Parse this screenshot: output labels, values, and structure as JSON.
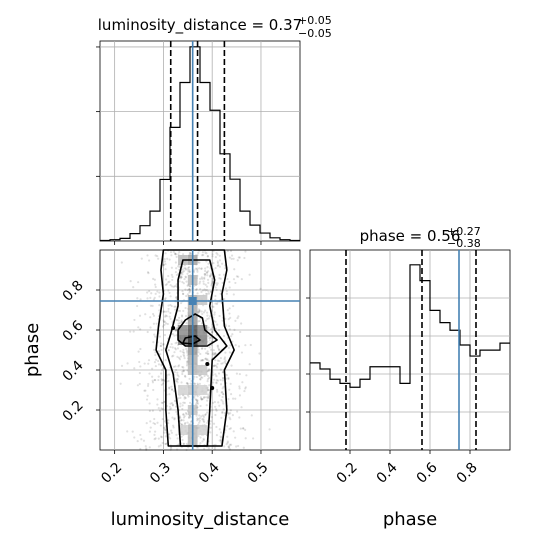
{
  "chart_data": {
    "type": "corner",
    "parameters": [
      "luminosity_distance",
      "phase"
    ],
    "truth": {
      "luminosity_distance": 0.36,
      "phase": 0.745
    },
    "grid": true,
    "luminosity_distance": {
      "title_main": "luminosity_distance = 0.37",
      "title_sup": "+0.05",
      "title_sub": "−0.05",
      "median": 0.37,
      "quantiles": [
        0.315,
        0.37,
        0.425
      ],
      "range": [
        0.17,
        0.58
      ],
      "ticks": [
        0.2,
        0.3,
        0.4,
        0.5
      ],
      "tick_labels": [
        "0.2",
        "0.3",
        "0.4",
        "0.5"
      ],
      "hist_bin_edges": [
        0.17,
        0.1905,
        0.211,
        0.2315,
        0.252,
        0.2725,
        0.293,
        0.3135,
        0.334,
        0.3545,
        0.375,
        0.3955,
        0.416,
        0.4365,
        0.457,
        0.4775,
        0.498,
        0.5185,
        0.539,
        0.5595,
        0.58
      ],
      "hist_counts": [
        2,
        5,
        10,
        28,
        58,
        113,
        233,
        430,
        600,
        735,
        600,
        495,
        330,
        234,
        113,
        60,
        30,
        12,
        5,
        2
      ]
    },
    "phase": {
      "title_main": "phase = 0.56",
      "title_sup": "+0.27",
      "title_sub": "−0.38",
      "median": 0.56,
      "quantiles": [
        0.18,
        0.56,
        0.83
      ],
      "range": [
        0.0,
        1.0
      ],
      "ticks": [
        0.2,
        0.4,
        0.6,
        0.8
      ],
      "tick_labels": [
        "0.2",
        "0.4",
        "0.6",
        "0.8"
      ],
      "hist_bin_edges": [
        0.0,
        0.05,
        0.1,
        0.15,
        0.2,
        0.25,
        0.3,
        0.35,
        0.4,
        0.45,
        0.5,
        0.55,
        0.6,
        0.65,
        0.7,
        0.75,
        0.8,
        0.85,
        0.9,
        0.95,
        1.0
      ],
      "hist_counts": [
        425,
        395,
        345,
        325,
        306,
        345,
        406,
        406,
        406,
        325,
        903,
        826,
        681,
        621,
        584,
        512,
        458,
        487,
        487,
        521
      ]
    },
    "joint": {
      "xlabel": "luminosity_distance",
      "ylabel": "phase",
      "xlim": [
        0.17,
        0.58
      ],
      "ylim": [
        0.0,
        1.0
      ],
      "peak": {
        "x": 0.36,
        "y": 0.55
      },
      "contours": [
        [
          [
            0.31,
            0.02
          ],
          [
            0.305,
            0.2
          ],
          [
            0.305,
            0.4
          ],
          [
            0.285,
            0.5
          ],
          [
            0.29,
            0.62
          ],
          [
            0.3,
            0.78
          ],
          [
            0.295,
            0.9
          ],
          [
            0.3,
            1.0
          ],
          [
            0.425,
            1.0
          ],
          [
            0.43,
            0.9
          ],
          [
            0.42,
            0.78
          ],
          [
            0.425,
            0.62
          ],
          [
            0.445,
            0.5
          ],
          [
            0.425,
            0.4
          ],
          [
            0.43,
            0.2
          ],
          [
            0.42,
            0.02
          ]
        ],
        [
          [
            0.335,
            0.02
          ],
          [
            0.33,
            0.2
          ],
          [
            0.32,
            0.38
          ],
          [
            0.305,
            0.5
          ],
          [
            0.315,
            0.58
          ],
          [
            0.33,
            0.72
          ],
          [
            0.33,
            0.85
          ],
          [
            0.34,
            0.95
          ],
          [
            0.395,
            0.95
          ],
          [
            0.405,
            0.85
          ],
          [
            0.395,
            0.72
          ],
          [
            0.405,
            0.6
          ],
          [
            0.43,
            0.52
          ],
          [
            0.4,
            0.45
          ],
          [
            0.395,
            0.2
          ],
          [
            0.39,
            0.02
          ]
        ],
        [
          [
            0.33,
            0.55
          ],
          [
            0.33,
            0.6
          ],
          [
            0.345,
            0.65
          ],
          [
            0.365,
            0.68
          ],
          [
            0.38,
            0.66
          ],
          [
            0.385,
            0.6
          ],
          [
            0.41,
            0.55
          ],
          [
            0.39,
            0.52
          ],
          [
            0.345,
            0.52
          ]
        ],
        [
          [
            0.34,
            0.535
          ],
          [
            0.345,
            0.56
          ],
          [
            0.365,
            0.57
          ],
          [
            0.375,
            0.55
          ],
          [
            0.36,
            0.53
          ]
        ]
      ],
      "shade_cells": [
        {
          "x": 0.36,
          "y": 0.55,
          "level": 0.95
        },
        {
          "x": 0.36,
          "y": 0.6,
          "level": 0.75
        },
        {
          "x": 0.34,
          "y": 0.55,
          "level": 0.6
        },
        {
          "x": 0.38,
          "y": 0.55,
          "level": 0.55
        },
        {
          "x": 0.34,
          "y": 0.6,
          "level": 0.5
        },
        {
          "x": 0.38,
          "y": 0.6,
          "level": 0.5
        },
        {
          "x": 0.36,
          "y": 0.65,
          "level": 0.45
        },
        {
          "x": 0.36,
          "y": 0.5,
          "level": 0.45
        },
        {
          "x": 0.36,
          "y": 0.45,
          "level": 0.35
        },
        {
          "x": 0.36,
          "y": 0.4,
          "level": 0.3
        },
        {
          "x": 0.38,
          "y": 0.4,
          "level": 0.25
        },
        {
          "x": 0.36,
          "y": 0.7,
          "level": 0.35
        },
        {
          "x": 0.36,
          "y": 0.75,
          "level": 0.35
        },
        {
          "x": 0.38,
          "y": 0.75,
          "level": 0.25
        },
        {
          "x": 0.36,
          "y": 0.85,
          "level": 0.3
        },
        {
          "x": 0.36,
          "y": 0.95,
          "level": 0.4
        },
        {
          "x": 0.34,
          "y": 0.95,
          "level": 0.3
        },
        {
          "x": 0.36,
          "y": 0.1,
          "level": 0.3
        },
        {
          "x": 0.36,
          "y": 0.05,
          "level": 0.3
        },
        {
          "x": 0.34,
          "y": 0.1,
          "level": 0.2
        },
        {
          "x": 0.38,
          "y": 0.1,
          "level": 0.2
        },
        {
          "x": 0.36,
          "y": 0.2,
          "level": 0.25
        },
        {
          "x": 0.36,
          "y": 0.3,
          "level": 0.25
        },
        {
          "x": 0.38,
          "y": 0.3,
          "level": 0.2
        },
        {
          "x": 0.34,
          "y": 0.3,
          "level": 0.2
        }
      ],
      "outlier_points": [
        [
          0.32,
          0.61
        ],
        [
          0.39,
          0.43
        ],
        [
          0.4,
          0.31
        ]
      ]
    }
  },
  "colors": {
    "truth": "#4682b4",
    "hist": "#000000",
    "grid": "#b0b0b0",
    "contour": "#000000"
  }
}
